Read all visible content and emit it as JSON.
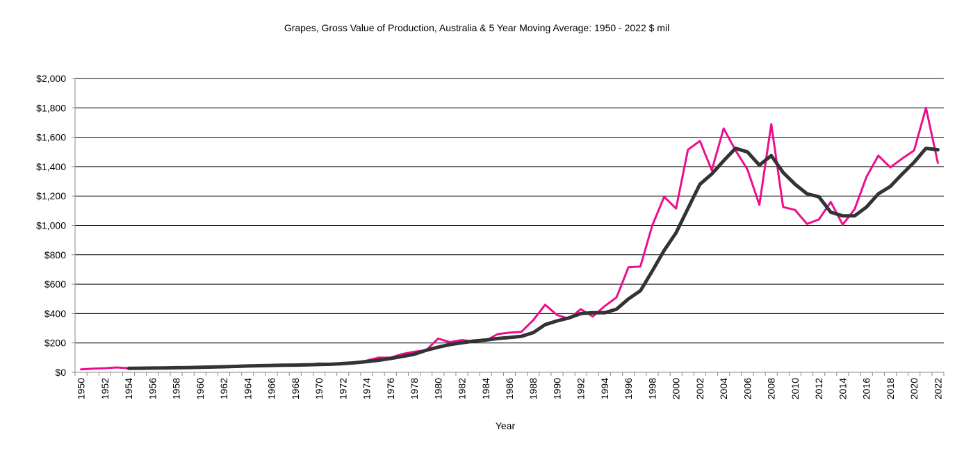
{
  "chart_data": {
    "type": "line",
    "title": "Grapes, Gross Value of Production, Australia & 5 Year Moving Average: 1950 - 2022 $ mil",
    "xlabel": "Year",
    "ylabel": "",
    "ylim": [
      0,
      2000
    ],
    "yticks": [
      0,
      200,
      400,
      600,
      800,
      1000,
      1200,
      1400,
      1600,
      1800,
      2000
    ],
    "ytick_labels": [
      "$0",
      "$200",
      "$400",
      "$600",
      "$800",
      "$1,000",
      "$1,200",
      "$1,400",
      "$1,600",
      "$1,800",
      "$2,000"
    ],
    "grid": "horizontal",
    "legend": "none",
    "x_start": 1950,
    "x_end": 2022,
    "series": [
      {
        "color": "#EC0E8C",
        "start": 1950,
        "values": [
          20,
          25,
          28,
          33,
          28,
          30,
          30,
          30,
          30,
          33,
          35,
          35,
          40,
          40,
          42,
          50,
          48,
          48,
          48,
          50,
          60,
          55,
          65,
          65,
          80,
          100,
          100,
          125,
          140,
          150,
          230,
          205,
          220,
          210,
          215,
          260,
          270,
          275,
          355,
          460,
          390,
          365,
          430,
          380,
          450,
          510,
          715,
          720,
          1000,
          1195,
          1115,
          1515,
          1575,
          1375,
          1660,
          1510,
          1380,
          1140,
          1690,
          1125,
          1105,
          1010,
          1040,
          1160,
          1005,
          1110,
          1330,
          1475,
          1395,
          1455,
          1510,
          1800,
          1425
        ]
      },
      {
        "color": "#333333",
        "start": 1954,
        "values": [
          27,
          28,
          29,
          30,
          31,
          32,
          34,
          36,
          38,
          40,
          43,
          45,
          47,
          48,
          49,
          51,
          53,
          55,
          59,
          65,
          73,
          82,
          94,
          108,
          123,
          150,
          171,
          189,
          201,
          213,
          220,
          230,
          237,
          245,
          270,
          325,
          350,
          370,
          400,
          405,
          405,
          430,
          500,
          555,
          690,
          830,
          950,
          1115,
          1280,
          1350,
          1440,
          1525,
          1500,
          1410,
          1475,
          1360,
          1280,
          1215,
          1195,
          1090,
          1065,
          1065,
          1125,
          1215,
          1265,
          1350,
          1430,
          1525,
          1515
        ]
      }
    ]
  }
}
